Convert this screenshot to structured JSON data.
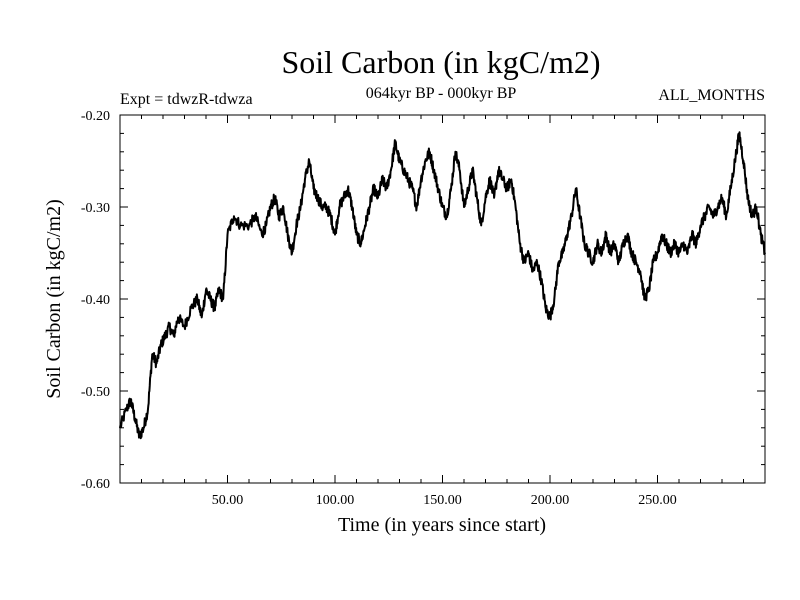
{
  "chart_data": {
    "type": "line",
    "title": "Soil Carbon (in kgC/m2)",
    "experiment_label": "Expt = tdwzR-tdwza",
    "period_label": "064kyr BP - 000kyr BP",
    "months_label": "ALL_MONTHS",
    "xlabel": "Time (in years since start)",
    "ylabel": "Soil Carbon (in kgC/m2)",
    "xlim": [
      0,
      300
    ],
    "ylim": [
      -0.6,
      -0.2
    ],
    "x_ticks": [
      50,
      100,
      150,
      200,
      250
    ],
    "x_tick_labels": [
      "50.00",
      "100.00",
      "150.00",
      "200.00",
      "250.00"
    ],
    "y_ticks": [
      -0.6,
      -0.5,
      -0.4,
      -0.3,
      -0.2
    ],
    "y_tick_labels": [
      "-0.60",
      "-0.50",
      "-0.40",
      "-0.30",
      "-0.20"
    ],
    "x_minor_step": 10,
    "y_minor_step": 0.02,
    "grid": false,
    "series": [
      {
        "name": "Soil Carbon",
        "color": "#000000",
        "x": [
          0,
          3,
          5,
          7,
          9,
          11,
          13,
          15,
          17,
          19,
          21,
          23,
          25,
          27,
          30,
          33,
          36,
          38,
          40,
          42,
          44,
          46,
          48,
          50,
          53,
          56,
          60,
          63,
          66,
          68,
          70,
          72,
          74,
          76,
          78,
          80,
          82,
          84,
          86,
          88,
          90,
          92,
          94,
          96,
          98,
          100,
          102,
          104,
          106,
          108,
          110,
          112,
          114,
          116,
          118,
          120,
          122,
          124,
          126,
          128,
          130,
          132,
          134,
          136,
          138,
          140,
          142,
          144,
          146,
          148,
          150,
          152,
          154,
          156,
          158,
          160,
          162,
          164,
          166,
          168,
          170,
          172,
          174,
          176,
          178,
          180,
          182,
          184,
          186,
          188,
          190,
          192,
          194,
          196,
          198,
          200,
          202,
          204,
          206,
          208,
          210,
          212,
          214,
          216,
          218,
          220,
          222,
          224,
          226,
          228,
          230,
          232,
          234,
          236,
          238,
          240,
          242,
          244,
          246,
          248,
          250,
          252,
          254,
          256,
          258,
          260,
          262,
          264,
          266,
          268,
          270,
          272,
          274,
          276,
          278,
          280,
          282,
          284,
          286,
          288,
          290,
          292,
          294,
          296,
          298,
          300
        ],
        "values": [
          -0.54,
          -0.52,
          -0.51,
          -0.53,
          -0.55,
          -0.54,
          -0.52,
          -0.46,
          -0.47,
          -0.45,
          -0.44,
          -0.43,
          -0.44,
          -0.42,
          -0.43,
          -0.41,
          -0.4,
          -0.42,
          -0.39,
          -0.4,
          -0.41,
          -0.39,
          -0.4,
          -0.33,
          -0.31,
          -0.32,
          -0.32,
          -0.31,
          -0.33,
          -0.32,
          -0.3,
          -0.29,
          -0.31,
          -0.3,
          -0.33,
          -0.35,
          -0.32,
          -0.3,
          -0.27,
          -0.25,
          -0.28,
          -0.29,
          -0.3,
          -0.3,
          -0.31,
          -0.33,
          -0.3,
          -0.29,
          -0.28,
          -0.3,
          -0.33,
          -0.34,
          -0.32,
          -0.3,
          -0.28,
          -0.29,
          -0.27,
          -0.28,
          -0.26,
          -0.23,
          -0.25,
          -0.26,
          -0.27,
          -0.28,
          -0.3,
          -0.27,
          -0.25,
          -0.24,
          -0.26,
          -0.28,
          -0.3,
          -0.31,
          -0.28,
          -0.24,
          -0.26,
          -0.3,
          -0.28,
          -0.26,
          -0.29,
          -0.32,
          -0.29,
          -0.27,
          -0.29,
          -0.26,
          -0.27,
          -0.28,
          -0.27,
          -0.3,
          -0.34,
          -0.36,
          -0.35,
          -0.37,
          -0.36,
          -0.38,
          -0.41,
          -0.42,
          -0.4,
          -0.36,
          -0.35,
          -0.33,
          -0.31,
          -0.28,
          -0.31,
          -0.34,
          -0.35,
          -0.36,
          -0.34,
          -0.35,
          -0.33,
          -0.35,
          -0.34,
          -0.36,
          -0.34,
          -0.33,
          -0.35,
          -0.36,
          -0.37,
          -0.4,
          -0.39,
          -0.36,
          -0.35,
          -0.33,
          -0.34,
          -0.35,
          -0.34,
          -0.35,
          -0.34,
          -0.35,
          -0.33,
          -0.34,
          -0.32,
          -0.31,
          -0.3,
          -0.31,
          -0.3,
          -0.29,
          -0.31,
          -0.28,
          -0.25,
          -0.22,
          -0.25,
          -0.29,
          -0.31,
          -0.3,
          -0.33,
          -0.35
        ]
      }
    ]
  }
}
